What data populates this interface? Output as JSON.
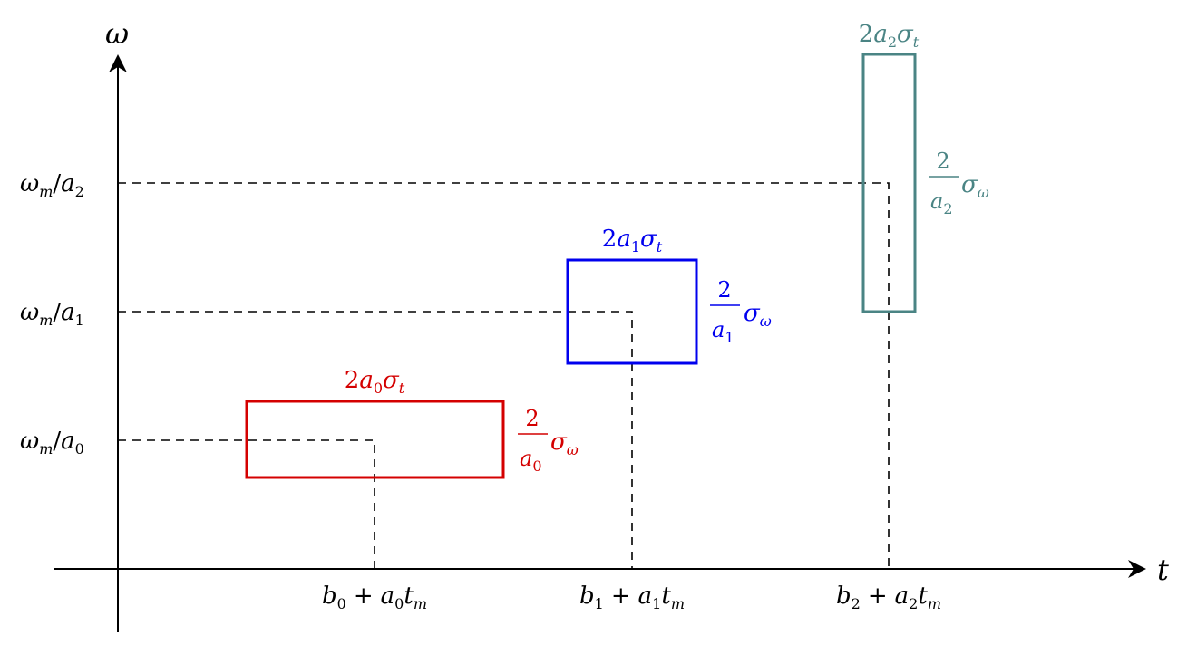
{
  "axes": {
    "x_label": "t",
    "y_label": "ω"
  },
  "ticks": {
    "y": [
      {
        "var": "ω",
        "sub": "m",
        "slash": "/",
        "den": "a",
        "den_sub": "2"
      },
      {
        "var": "ω",
        "sub": "m",
        "slash": "/",
        "den": "a",
        "den_sub": "1"
      },
      {
        "var": "ω",
        "sub": "m",
        "slash": "/",
        "den": "a",
        "den_sub": "0"
      }
    ],
    "x": [
      {
        "b": "b",
        "b_sub": "0",
        "plus": "+",
        "a": "a",
        "a_sub": "0",
        "t": "t",
        "t_sub": "m"
      },
      {
        "b": "b",
        "b_sub": "1",
        "plus": "+",
        "a": "a",
        "a_sub": "1",
        "t": "t",
        "t_sub": "m"
      },
      {
        "b": "b",
        "b_sub": "2",
        "plus": "+",
        "a": "a",
        "a_sub": "2",
        "t": "t",
        "t_sub": "m"
      }
    ]
  },
  "boxes": [
    {
      "color": "#d40000",
      "width_label": {
        "coef": "2",
        "a": "a",
        "a_sub": "0",
        "sigma": "σ",
        "sigma_sub": "t"
      },
      "height_label": {
        "num": "2",
        "den": "a",
        "den_sub": "0",
        "sigma": "σ",
        "sigma_sub": "ω"
      }
    },
    {
      "color": "#0000ee",
      "width_label": {
        "coef": "2",
        "a": "a",
        "a_sub": "1",
        "sigma": "σ",
        "sigma_sub": "t"
      },
      "height_label": {
        "num": "2",
        "den": "a",
        "den_sub": "1",
        "sigma": "σ",
        "sigma_sub": "ω"
      }
    },
    {
      "color": "#4a8484",
      "width_label": {
        "coef": "2",
        "a": "a",
        "a_sub": "2",
        "sigma": "σ",
        "sigma_sub": "t"
      },
      "height_label": {
        "num": "2",
        "den": "a",
        "den_sub": "2",
        "sigma": "σ",
        "sigma_sub": "ω"
      }
    }
  ]
}
